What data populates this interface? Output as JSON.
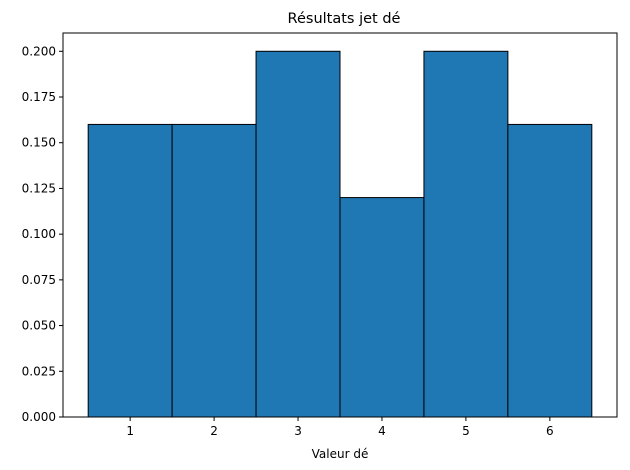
{
  "chart_data": {
    "type": "bar",
    "title": "Résultats jet dé",
    "xlabel": "Valeur dé",
    "ylabel": "",
    "categories": [
      "1",
      "2",
      "3",
      "4",
      "5",
      "6"
    ],
    "x": [
      1,
      2,
      3,
      4,
      5,
      6
    ],
    "values": [
      0.16,
      0.16,
      0.2,
      0.12,
      0.2,
      0.16
    ],
    "xlim": [
      0.2,
      6.8
    ],
    "ylim": [
      0,
      0.21
    ],
    "yticks": [
      0.0,
      0.025,
      0.05,
      0.075,
      0.1,
      0.125,
      0.15,
      0.175,
      0.2
    ],
    "ytick_labels": [
      "0.000",
      "0.025",
      "0.050",
      "0.075",
      "0.100",
      "0.125",
      "0.150",
      "0.175",
      "0.200"
    ],
    "bar_color": "#1f77b4",
    "edge_color": "#000000",
    "grid": false,
    "legend": "none"
  }
}
